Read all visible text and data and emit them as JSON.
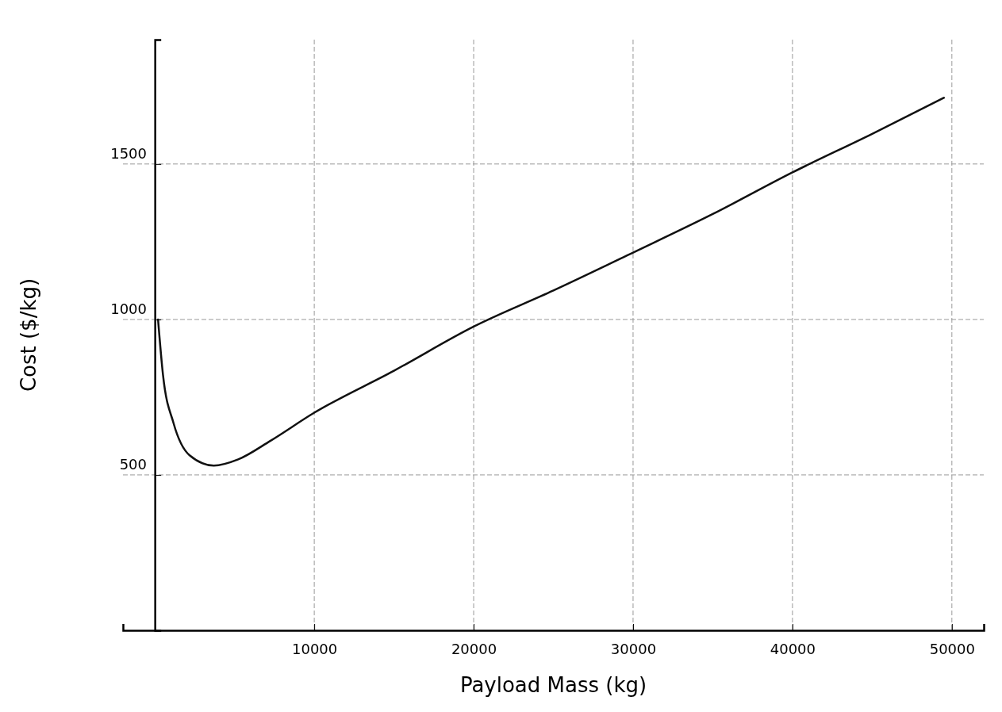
{
  "chart_data": {
    "type": "line",
    "xlabel": "Payload Mass (kg)",
    "ylabel": "Cost ($/kg)",
    "x": [
      200,
      510,
      1170,
      2180,
      3700,
      5230,
      7260,
      10000,
      15000,
      20000,
      25000,
      30000,
      35000,
      40000,
      45000,
      49500
    ],
    "series": [
      {
        "color": "#111111",
        "values": [
          1000,
          822,
          667,
          563,
          530,
          550,
          610,
          700,
          835,
          977,
          1093,
          1215,
          1339,
          1473,
          1597,
          1713
        ]
      }
    ],
    "xlim": [
      -2000,
      52000
    ],
    "ylim": [
      0,
      1900
    ],
    "xticks": [
      10000,
      20000,
      30000,
      40000,
      50000
    ],
    "yticks": [
      500,
      1000,
      1500
    ],
    "grid": true,
    "marker": "none",
    "line_style": "solid"
  }
}
